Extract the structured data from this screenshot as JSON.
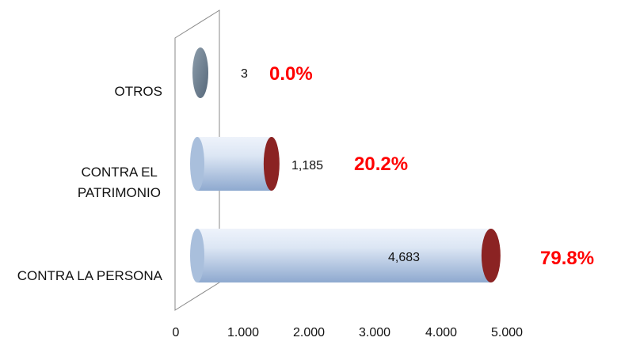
{
  "chart_data": {
    "type": "bar",
    "orientation": "horizontal",
    "categories": [
      "OTROS",
      "CONTRA EL PATRIMONIO",
      "CONTRA LA PERSONA"
    ],
    "category_lines": [
      [
        "OTROS"
      ],
      [
        "CONTRA EL",
        "PATRIMONIO"
      ],
      [
        "CONTRA LA PERSONA"
      ]
    ],
    "series": [
      {
        "values": [
          3,
          1185,
          4683
        ]
      }
    ],
    "value_labels": [
      "3",
      "1,185",
      "4,683"
    ],
    "percent_labels": [
      "0.0%",
      "20.2%",
      "79.8%"
    ],
    "x_ticks": [
      "0",
      "1.000",
      "2.000",
      "3.000",
      "4.000",
      "5.000"
    ],
    "xlim": [
      0,
      5000
    ],
    "title": "",
    "xlabel": "",
    "ylabel": "",
    "grid": false,
    "legend": "none",
    "colors": {
      "bar_body_light": "#dce6f4",
      "bar_body_dark": "#8ea9cf",
      "bar_cap": "#8b2323",
      "small_bar": "#6f8293",
      "percent_text": "#ff0000"
    }
  }
}
